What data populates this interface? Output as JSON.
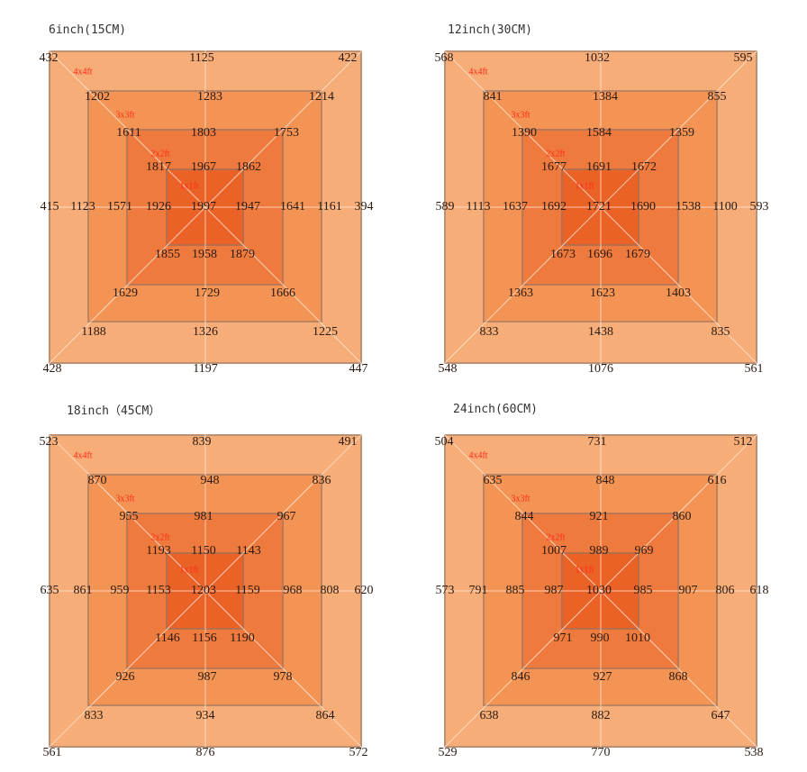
{
  "zone_labels": [
    "4x4ft",
    "3x3ft",
    "2x2ft",
    "1x1ft"
  ],
  "colors": {
    "ring1": "#f6ad78",
    "ring2": "#f39454",
    "ring3": "#ef7a3d",
    "ring4": "#eb6227",
    "zone_label": "#ff2a1a"
  },
  "panels": [
    {
      "title": "6inch(15CM)",
      "ring1": [
        "432",
        "1125",
        "422",
        "415",
        "394",
        "428",
        "1197",
        "447"
      ],
      "ring2": [
        "1202",
        "1283",
        "1214",
        "1123",
        "1161",
        "1188",
        "1326",
        "1225"
      ],
      "ring3": [
        "1611",
        "1803",
        "1753",
        "1571",
        "1641",
        "1629",
        "1729",
        "1666"
      ],
      "ring4": [
        "1817",
        "1967",
        "1862",
        "1926",
        "1997",
        "1947",
        "1855",
        "1958",
        "1879"
      ]
    },
    {
      "title": "12inch(30CM)",
      "ring1": [
        "568",
        "1032",
        "595",
        "589",
        "593",
        "548",
        "1076",
        "561"
      ],
      "ring2": [
        "841",
        "1384",
        "855",
        "1113",
        "1100",
        "833",
        "1438",
        "835"
      ],
      "ring3": [
        "1390",
        "1584",
        "1359",
        "1637",
        "1538",
        "1363",
        "1623",
        "1403"
      ],
      "ring4": [
        "1677",
        "1691",
        "1672",
        "1692",
        "1721",
        "1690",
        "1673",
        "1696",
        "1679"
      ]
    },
    {
      "title": "18inch（45CM）",
      "ring1": [
        "523",
        "839",
        "491",
        "635",
        "620",
        "561",
        "876",
        "572"
      ],
      "ring2": [
        "870",
        "948",
        "836",
        "861",
        "808",
        "833",
        "934",
        "864"
      ],
      "ring3": [
        "955",
        "981",
        "967",
        "959",
        "968",
        "926",
        "987",
        "978"
      ],
      "ring4": [
        "1193",
        "1150",
        "1143",
        "1153",
        "1203",
        "1159",
        "1146",
        "1156",
        "1190"
      ]
    },
    {
      "title": "24inch(60CM)",
      "ring1": [
        "504",
        "731",
        "512",
        "573",
        "618",
        "529",
        "770",
        "538"
      ],
      "ring2": [
        "635",
        "848",
        "616",
        "791",
        "806",
        "638",
        "882",
        "647"
      ],
      "ring3": [
        "844",
        "921",
        "860",
        "885",
        "907",
        "846",
        "927",
        "868"
      ],
      "ring4": [
        "1007",
        "989",
        "969",
        "987",
        "1030",
        "985",
        "971",
        "990",
        "1010"
      ]
    }
  ]
}
